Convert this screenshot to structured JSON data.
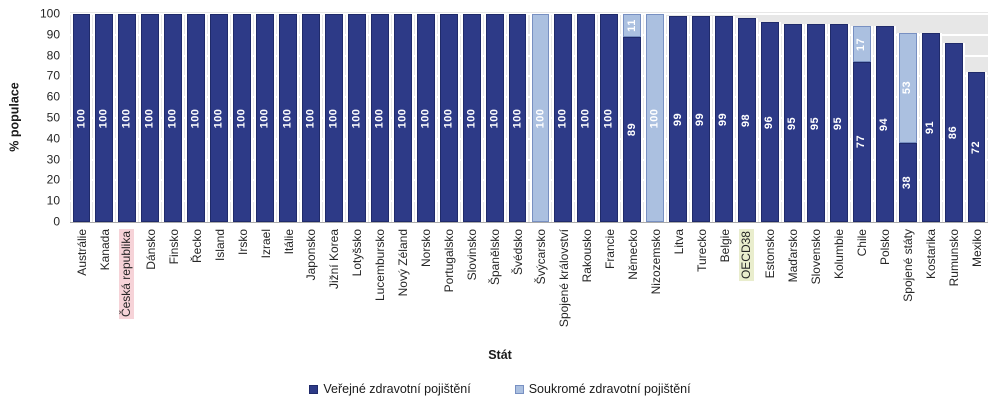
{
  "chart_data": {
    "type": "bar",
    "stacked": true,
    "title": "",
    "xlabel": "Stát",
    "ylabel": "% populace",
    "ylim": [
      0,
      100
    ],
    "yticks": [
      0,
      10,
      20,
      30,
      40,
      50,
      60,
      70,
      80,
      90,
      100
    ],
    "grid": "horizontal",
    "legend_position": "bottom",
    "categories": [
      "Austrálie",
      "Kanada",
      "Česká republika",
      "Dánsko",
      "Finsko",
      "Řecko",
      "Island",
      "Irsko",
      "Izrael",
      "Itálie",
      "Japonsko",
      "Jižní Korea",
      "Lotyšsko",
      "Lucembursko",
      "Nový Zéland",
      "Norsko",
      "Portugalsko",
      "Slovinsko",
      "Španělsko",
      "Švédsko",
      "Švýcarsko",
      "Spojené království",
      "Rakousko",
      "Francie",
      "Německo",
      "Nizozemsko",
      "Litva",
      "Turecko",
      "Belgie",
      "OECD38",
      "Estonsko",
      "Maďarsko",
      "Slovensko",
      "Kolumbie",
      "Chile",
      "Polsko",
      "Spojené státy",
      "Kostarika",
      "Rumunsko",
      "Mexiko"
    ],
    "series": [
      {
        "name": "Veřejné zdravotní pojištění",
        "color": "#2d3a87",
        "border_color": "#1f2a6a",
        "values": [
          100,
          100,
          100,
          100,
          100,
          100,
          100,
          100,
          100,
          100,
          100,
          100,
          100,
          100,
          100,
          100,
          100,
          100,
          100,
          100,
          0,
          100,
          100,
          100,
          89,
          0,
          99,
          99,
          99,
          98,
          96,
          95,
          95,
          95,
          77,
          94,
          38,
          91,
          86,
          72
        ]
      },
      {
        "name": "Soukromé zdravotní pojištění",
        "color": "#abc0e0",
        "border_color": "#7890c2",
        "values": [
          0,
          0,
          0,
          0,
          0,
          0,
          0,
          0,
          0,
          0,
          0,
          0,
          0,
          0,
          0,
          0,
          0,
          0,
          0,
          0,
          100,
          0,
          0,
          0,
          11,
          100,
          0,
          0,
          0,
          0,
          0,
          0,
          0,
          0,
          17,
          0,
          53,
          0,
          0,
          0
        ]
      }
    ],
    "bar_value_labels": {
      "shown": true,
      "color": "#ffffff",
      "rotation": 90
    },
    "highlights": [
      {
        "category": "Česká republika",
        "color": "#f6d3d8"
      },
      {
        "category": "OECD38",
        "color": "#e9edcd"
      }
    ]
  },
  "colors": {
    "plot_background": "#e7e7e7",
    "gridline": "#ffffff",
    "page_background": "#ffffff",
    "axis_text": "#262626",
    "baseline": "#ababab"
  }
}
